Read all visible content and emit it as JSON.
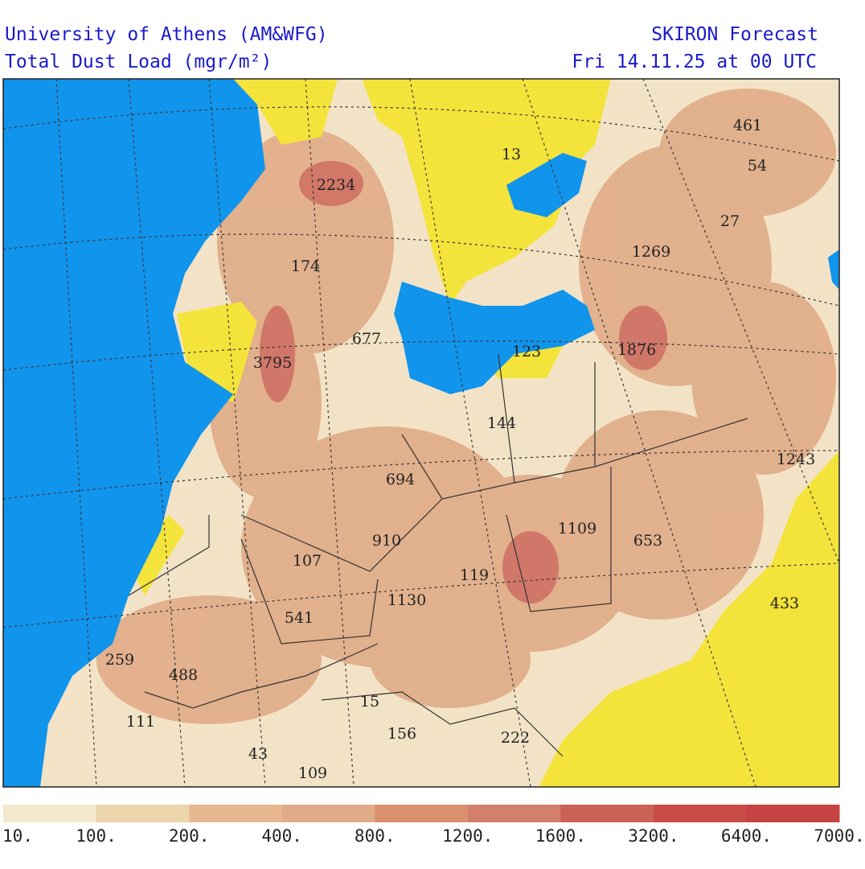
{
  "header": {
    "left": [
      "University of Athens (AM&WFG)",
      "Total Dust Load (mgr/m²)"
    ],
    "right": [
      "SKIRON Forecast",
      "Fri 14.11.25 at 00 UTC"
    ]
  },
  "map": {
    "labels": [
      461,
      54,
      2234,
      13,
      27,
      1269,
      174,
      677,
      123,
      1876,
      3795,
      144,
      1243,
      694,
      1109,
      653,
      910,
      107,
      119,
      1130,
      433,
      541,
      259,
      488,
      15,
      111,
      156,
      222,
      43,
      109
    ]
  },
  "colorbar": {
    "colors": [
      "#f4e8cf",
      "#edd6ac",
      "#e8b990",
      "#e0ac88",
      "#db906f",
      "#d27f6c",
      "#cb6256",
      "#c84c48",
      "#c54343"
    ],
    "labels": [
      "10.",
      "100.",
      "200.",
      "400.",
      "800.",
      "1200.",
      "1600.",
      "3200.",
      "6400.",
      "7000."
    ]
  }
}
